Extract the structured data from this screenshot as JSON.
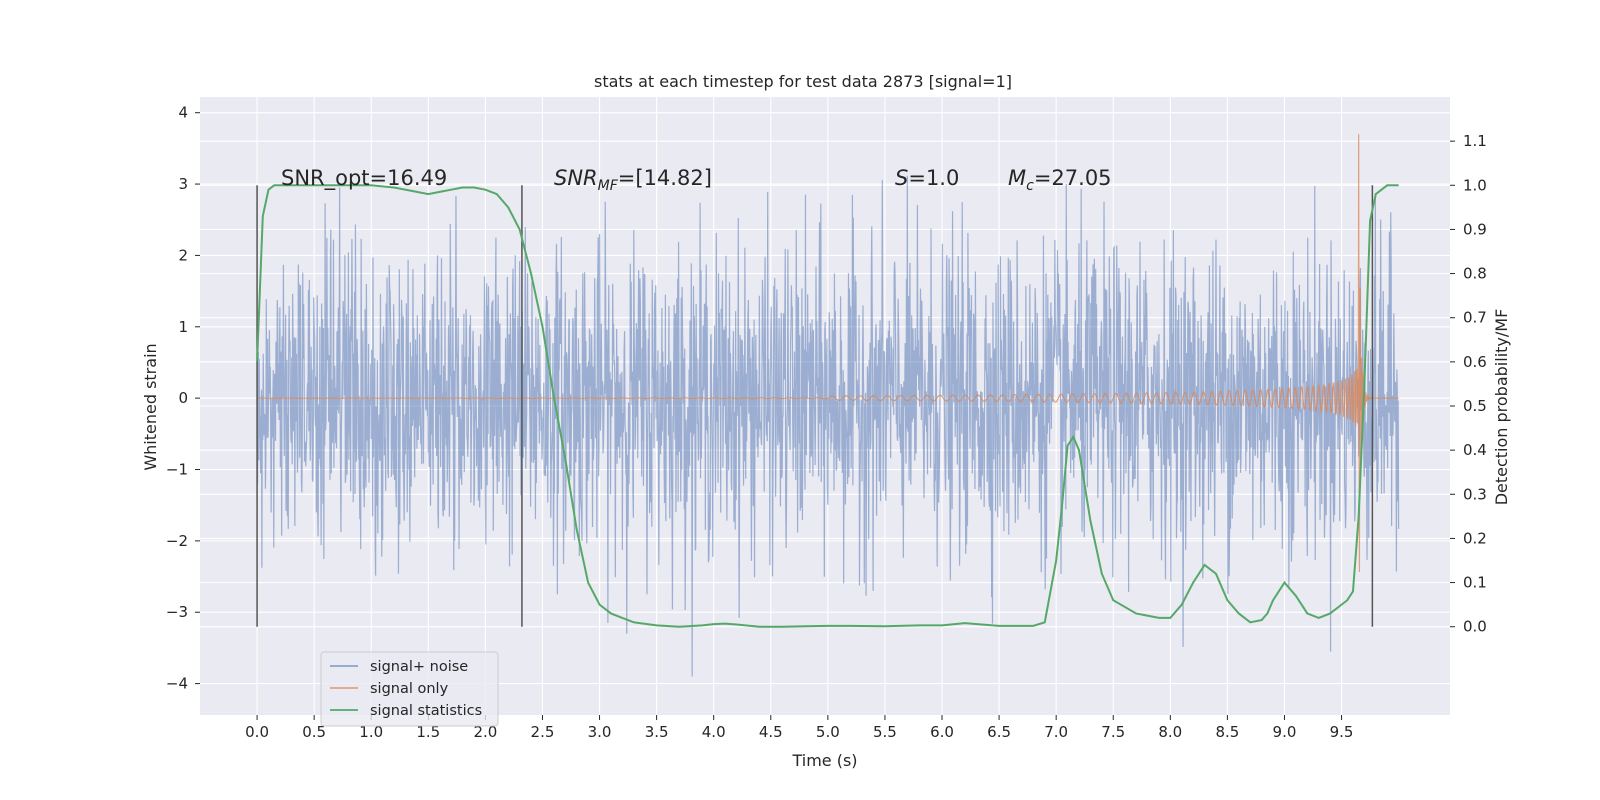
{
  "chart_data": {
    "type": "line",
    "title": "stats at each timestep for test data 2873 [signal=1]",
    "xlabel": "Time (s)",
    "ylabel": "Whitened strain",
    "ylabel_right": "Detection probability/MF",
    "xlim": [
      -0.5,
      10.45
    ],
    "ylim": [
      -4.44,
      4.22
    ],
    "ylim_right": [
      -0.2,
      1.2
    ],
    "xticks": [
      "0.0",
      "0.5",
      "1.0",
      "1.5",
      "2.0",
      "2.5",
      "3.0",
      "3.5",
      "4.0",
      "4.5",
      "5.0",
      "5.5",
      "6.0",
      "6.5",
      "7.0",
      "7.5",
      "8.0",
      "8.5",
      "9.0",
      "9.5"
    ],
    "yticks": [
      "−4",
      "−3",
      "−2",
      "−1",
      "0",
      "1",
      "2",
      "3",
      "4"
    ],
    "yticks_right": [
      "0.0",
      "0.1",
      "0.2",
      "0.3",
      "0.4",
      "0.5",
      "0.6",
      "0.7",
      "0.8",
      "0.9",
      "1.0",
      "1.1"
    ],
    "grid": true,
    "legend_position": "lower-left",
    "annotations": {
      "snr_opt": "SNR_opt=16.49",
      "snr_mf_main": "SNR",
      "snr_mf_sub": "MF",
      "snr_mf_value": "=[14.82]",
      "s_main": "S",
      "s_value": "=1.0",
      "mc_main": "M",
      "mc_sub": "c",
      "mc_value": "=27.05"
    },
    "vertical_lines_x": [
      0.0,
      2.32,
      9.77
    ],
    "series": [
      {
        "name": "signal+ noise",
        "color": "#4c72b0",
        "description": "whitened strain, gaussian-like noise with amplitude ~1 and peaks up to about ±3.9, sampled from 0 to 10 s",
        "x_range": [
          0.0,
          10.0
        ],
        "envelope_peak": 3.9,
        "envelope_min": -3.9
      },
      {
        "name": "signal only",
        "color": "#dd8452",
        "description": "chirp signal, near zero amplitude until ~5.5 s, growing to merger around 9.65 s",
        "merger_time": 9.65,
        "peak_amplitude_pos": 3.7,
        "peak_amplitude_neg": -4.0
      },
      {
        "name": "signal statistics",
        "color": "#55a868",
        "axis": "right",
        "x": [
          0.0,
          0.05,
          0.1,
          0.15,
          0.2,
          0.3,
          0.5,
          0.8,
          1.0,
          1.2,
          1.4,
          1.5,
          1.6,
          1.7,
          1.8,
          1.9,
          2.0,
          2.1,
          2.2,
          2.3,
          2.4,
          2.5,
          2.6,
          2.7,
          2.8,
          2.9,
          3.0,
          3.1,
          3.2,
          3.3,
          3.5,
          3.7,
          3.9,
          4.0,
          4.1,
          4.2,
          4.4,
          4.6,
          4.8,
          5.0,
          5.2,
          5.5,
          5.8,
          6.0,
          6.2,
          6.5,
          6.8,
          6.9,
          7.0,
          7.05,
          7.1,
          7.15,
          7.2,
          7.3,
          7.4,
          7.5,
          7.7,
          7.9,
          8.0,
          8.1,
          8.2,
          8.3,
          8.4,
          8.5,
          8.6,
          8.7,
          8.8,
          8.85,
          8.9,
          9.0,
          9.1,
          9.2,
          9.3,
          9.4,
          9.5,
          9.55,
          9.6,
          9.65,
          9.7,
          9.75,
          9.8,
          9.85,
          9.9,
          9.95,
          10.0
        ],
        "y": [
          0.6,
          0.93,
          0.99,
          1.0,
          1.0,
          1.0,
          1.0,
          1.0,
          1.0,
          0.995,
          0.985,
          0.98,
          0.985,
          0.99,
          0.995,
          0.995,
          0.99,
          0.98,
          0.95,
          0.9,
          0.8,
          0.68,
          0.52,
          0.38,
          0.22,
          0.1,
          0.05,
          0.03,
          0.02,
          0.01,
          0.003,
          0.0,
          0.003,
          0.006,
          0.007,
          0.005,
          0.0,
          0.0,
          0.001,
          0.002,
          0.002,
          0.001,
          0.003,
          0.003,
          0.008,
          0.002,
          0.002,
          0.01,
          0.15,
          0.27,
          0.41,
          0.43,
          0.4,
          0.24,
          0.12,
          0.06,
          0.03,
          0.02,
          0.02,
          0.05,
          0.1,
          0.14,
          0.12,
          0.06,
          0.03,
          0.01,
          0.015,
          0.03,
          0.06,
          0.1,
          0.07,
          0.03,
          0.02,
          0.03,
          0.05,
          0.06,
          0.08,
          0.25,
          0.55,
          0.92,
          0.98,
          0.99,
          1.0,
          1.0,
          1.0
        ]
      }
    ]
  }
}
